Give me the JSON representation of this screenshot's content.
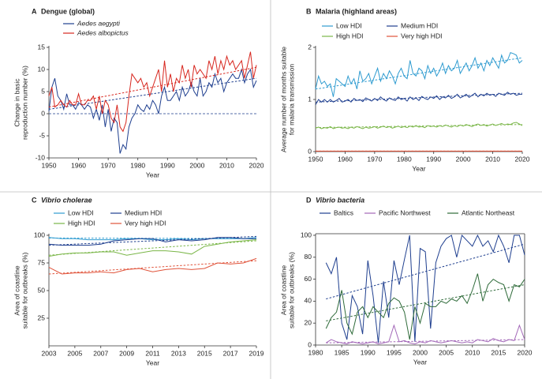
{
  "chart_data": [
    {
      "type": "line",
      "panel": "A",
      "title": "Dengue (global)",
      "xlabel": "Year",
      "ylabel": [
        "Change in basic",
        "reproduction number (%)"
      ],
      "xlim": [
        1950,
        2020
      ],
      "xticks": [
        1950,
        1960,
        1970,
        1980,
        1990,
        2000,
        2010,
        2020
      ],
      "ylim": [
        -10,
        15
      ],
      "yticks": [
        -10,
        -5,
        0,
        5,
        10,
        15
      ],
      "reference_line": 0,
      "trend_x": [
        1950,
        2020
      ],
      "x": [
        1950,
        1951,
        1952,
        1953,
        1954,
        1955,
        1956,
        1957,
        1958,
        1959,
        1960,
        1961,
        1962,
        1963,
        1964,
        1965,
        1966,
        1967,
        1968,
        1969,
        1970,
        1971,
        1972,
        1973,
        1974,
        1975,
        1976,
        1977,
        1978,
        1979,
        1980,
        1981,
        1982,
        1983,
        1984,
        1985,
        1986,
        1987,
        1988,
        1989,
        1990,
        1991,
        1992,
        1993,
        1994,
        1995,
        1996,
        1997,
        1998,
        1999,
        2000,
        2001,
        2002,
        2003,
        2004,
        2005,
        2006,
        2007,
        2008,
        2009,
        2010,
        2011,
        2012,
        2013,
        2014,
        2015,
        2016,
        2017,
        2018,
        2019,
        2020
      ],
      "series": [
        {
          "name": "Aedes aegypti",
          "color": "#1f3f8f",
          "trend": [
            1,
            8
          ],
          "values": [
            0.5,
            6,
            8,
            4,
            3,
            1,
            4.5,
            2,
            2,
            1,
            2.5,
            2,
            1,
            2,
            1.5,
            -1,
            1,
            -1.5,
            2,
            -3,
            1,
            -4,
            -1,
            -2,
            -9,
            -7,
            -8,
            -3,
            -1,
            0,
            2,
            1,
            0.5,
            2,
            1,
            3,
            2,
            0,
            4,
            6,
            3,
            3,
            4,
            5,
            3,
            6,
            4,
            5,
            7,
            5,
            4,
            8,
            4,
            5,
            7,
            6,
            9,
            7,
            8,
            5,
            7,
            8,
            9,
            8,
            8,
            10,
            7,
            9,
            10,
            6,
            7.5
          ]
        },
        {
          "name": "Aedes albopictus",
          "color": "#d7261e",
          "trend": [
            1.5,
            10.5
          ],
          "values": [
            4,
            6,
            1.5,
            2,
            3,
            2,
            1.5,
            3,
            2,
            2,
            4.5,
            2,
            2,
            3,
            3,
            4,
            1,
            4,
            0,
            3,
            2,
            -1,
            -2,
            2,
            -3,
            -4,
            -2,
            4,
            9,
            8,
            7,
            8,
            6,
            7,
            4,
            6,
            8,
            10,
            5,
            12,
            6,
            9,
            5,
            8,
            7,
            11,
            8,
            10,
            6,
            11,
            9,
            10,
            9,
            8,
            12,
            10,
            13,
            9,
            12,
            10,
            13,
            11,
            12,
            10,
            11,
            12,
            8,
            11,
            14,
            8,
            11
          ]
        }
      ]
    },
    {
      "type": "line",
      "panel": "B",
      "title": "Malaria (highland areas)",
      "xlabel": "Year",
      "ylabel": [
        "Average number of months suitable",
        "for malaria transmission"
      ],
      "xlim": [
        1950,
        2020
      ],
      "xticks": [
        1950,
        1960,
        1970,
        1980,
        1990,
        2000,
        2010,
        2020
      ],
      "ylim": [
        0,
        2
      ],
      "yticks": [
        0,
        1,
        2
      ],
      "trend_x": [
        1950,
        2020
      ],
      "x": [
        1950,
        1951,
        1952,
        1953,
        1954,
        1955,
        1956,
        1957,
        1958,
        1959,
        1960,
        1961,
        1962,
        1963,
        1964,
        1965,
        1966,
        1967,
        1968,
        1969,
        1970,
        1971,
        1972,
        1973,
        1974,
        1975,
        1976,
        1977,
        1978,
        1979,
        1980,
        1981,
        1982,
        1983,
        1984,
        1985,
        1986,
        1987,
        1988,
        1989,
        1990,
        1991,
        1992,
        1993,
        1994,
        1995,
        1996,
        1997,
        1998,
        1999,
        2000,
        2001,
        2002,
        2003,
        2004,
        2005,
        2006,
        2007,
        2008,
        2009,
        2010,
        2011,
        2012,
        2013,
        2014,
        2015,
        2016,
        2017,
        2018,
        2019,
        2020
      ],
      "series": [
        {
          "name": "Low HDI",
          "color": "#2e9bd0",
          "trend": [
            1.2,
            1.8
          ],
          "values": [
            1.2,
            1.45,
            1.3,
            1.35,
            1.25,
            1.3,
            1.05,
            1.4,
            1.35,
            1.3,
            1.25,
            1.45,
            1.3,
            1.4,
            1.2,
            1.55,
            1.35,
            1.4,
            1.5,
            1.3,
            1.45,
            1.6,
            1.35,
            1.5,
            1.4,
            1.55,
            1.45,
            1.3,
            1.5,
            1.6,
            1.45,
            1.4,
            1.75,
            1.5,
            1.45,
            1.6,
            1.55,
            1.4,
            1.65,
            1.5,
            1.6,
            1.45,
            1.55,
            1.7,
            1.5,
            1.65,
            1.55,
            1.6,
            1.75,
            1.5,
            1.6,
            1.7,
            1.55,
            1.65,
            1.8,
            1.6,
            1.7,
            1.55,
            1.75,
            1.65,
            1.8,
            1.7,
            1.6,
            1.85,
            1.7,
            1.75,
            1.9,
            1.88,
            1.85,
            1.7,
            1.75
          ]
        },
        {
          "name": "Medium HDI",
          "color": "#1f3f8f",
          "trend": [
            0.95,
            1.12
          ],
          "values": [
            0.9,
            1.0,
            0.95,
            1.0,
            0.95,
            1.0,
            0.95,
            0.98,
            1.02,
            0.95,
            0.97,
            1.0,
            0.95,
            1.02,
            0.98,
            1.0,
            0.96,
            1.03,
            1.0,
            0.97,
            1.02,
            0.98,
            1.05,
            1.0,
            0.97,
            1.03,
            1.0,
            0.98,
            1.05,
            1.0,
            1.02,
            0.97,
            1.05,
            1.0,
            1.03,
            0.98,
            1.06,
            1.02,
            1.0,
            1.05,
            1.02,
            1.07,
            1.0,
            1.05,
            1.03,
            1.08,
            1.02,
            1.05,
            1.1,
            1.03,
            1.06,
            1.1,
            1.04,
            1.08,
            1.12,
            1.05,
            1.1,
            1.07,
            1.12,
            1.08,
            1.1,
            1.06,
            1.12,
            1.1,
            1.08,
            1.14,
            1.1,
            1.12,
            1.08,
            1.1,
            1.1
          ]
        },
        {
          "name": "High HDI",
          "color": "#7ab648",
          "trend": [
            0.46,
            0.52
          ],
          "values": [
            0.45,
            0.47,
            0.44,
            0.46,
            0.45,
            0.48,
            0.44,
            0.46,
            0.47,
            0.45,
            0.46,
            0.44,
            0.47,
            0.45,
            0.48,
            0.46,
            0.44,
            0.47,
            0.45,
            0.46,
            0.48,
            0.45,
            0.47,
            0.49,
            0.46,
            0.48,
            0.45,
            0.47,
            0.49,
            0.46,
            0.48,
            0.46,
            0.49,
            0.47,
            0.5,
            0.47,
            0.48,
            0.46,
            0.5,
            0.48,
            0.49,
            0.47,
            0.5,
            0.48,
            0.51,
            0.49,
            0.47,
            0.5,
            0.48,
            0.51,
            0.49,
            0.52,
            0.5,
            0.48,
            0.51,
            0.53,
            0.5,
            0.52,
            0.49,
            0.51,
            0.53,
            0.5,
            0.52,
            0.54,
            0.51,
            0.53,
            0.52,
            0.55,
            0.56,
            0.53,
            0.5
          ]
        },
        {
          "name": "Very high HDI",
          "color": "#e0533a",
          "trend": [
            0.01,
            0.01
          ],
          "values": [
            0.01,
            0.01,
            0.01,
            0.01,
            0.01,
            0.01,
            0.01,
            0.01,
            0.01,
            0.01,
            0.01,
            0.01,
            0.01,
            0.01,
            0.01,
            0.01,
            0.01,
            0.01,
            0.01,
            0.01,
            0.01,
            0.01,
            0.01,
            0.01,
            0.01,
            0.01,
            0.01,
            0.01,
            0.01,
            0.01,
            0.01,
            0.01,
            0.01,
            0.01,
            0.01,
            0.01,
            0.01,
            0.01,
            0.01,
            0.01,
            0.01,
            0.01,
            0.01,
            0.01,
            0.01,
            0.01,
            0.01,
            0.01,
            0.01,
            0.01,
            0.01,
            0.01,
            0.01,
            0.01,
            0.01,
            0.01,
            0.01,
            0.01,
            0.01,
            0.01,
            0.01,
            0.01,
            0.01,
            0.01,
            0.01,
            0.01,
            0.01,
            0.01,
            0.01,
            0.01,
            0.01
          ]
        }
      ]
    },
    {
      "type": "line",
      "panel": "C",
      "title": "Vibrio cholerae",
      "xlabel": "Year",
      "ylabel": [
        "Area of coastline",
        "suitable for outbreaks (%)"
      ],
      "xlim": [
        2003,
        2019
      ],
      "xticks": [
        2003,
        2005,
        2007,
        2009,
        2011,
        2013,
        2015,
        2017,
        2019
      ],
      "ylim": [
        0,
        100
      ],
      "yticks": [
        25,
        50,
        75,
        100
      ],
      "trend_x": [
        2003,
        2019
      ],
      "x": [
        2003,
        2004,
        2005,
        2006,
        2007,
        2008,
        2009,
        2010,
        2011,
        2012,
        2013,
        2014,
        2015,
        2016,
        2017,
        2018,
        2019
      ],
      "series": [
        {
          "name": "Low HDI",
          "color": "#2e9bd0",
          "trend": [
            97.5,
            97
          ],
          "values": [
            98,
            97,
            97,
            96,
            96,
            96,
            97,
            97,
            96,
            96,
            97,
            96,
            97,
            97,
            97,
            97,
            98
          ]
        },
        {
          "name": "Medium HDI",
          "color": "#1f3f8f",
          "trend": [
            91,
            99
          ],
          "values": [
            92,
            91,
            91,
            91,
            92,
            95,
            96,
            97,
            97,
            94,
            96,
            95,
            96,
            98,
            98,
            97,
            97
          ]
        },
        {
          "name": "High HDI",
          "color": "#7ab648",
          "trend": [
            82,
            95
          ],
          "values": [
            81,
            83,
            84,
            84,
            85,
            85,
            82,
            84,
            86,
            86,
            85,
            83,
            90,
            92,
            94,
            95,
            96
          ]
        },
        {
          "name": "Very high HDI",
          "color": "#e0533a",
          "trend": [
            65,
            77
          ],
          "values": [
            71,
            65,
            66,
            66,
            67,
            66,
            69,
            70,
            67,
            69,
            70,
            69,
            70,
            75,
            74,
            75,
            79
          ]
        }
      ]
    },
    {
      "type": "line",
      "panel": "D",
      "title": "Vibrio bacteria",
      "xlabel": "Year",
      "ylabel": [
        "Area of coastline",
        "suitable for outbreaks (%)"
      ],
      "xlim": [
        1980,
        2020
      ],
      "xticks": [
        1980,
        1985,
        1990,
        1995,
        2000,
        2005,
        2010,
        2015,
        2020
      ],
      "ylim": [
        0,
        100
      ],
      "yticks": [
        0,
        20,
        40,
        60,
        80,
        100
      ],
      "trend_x": [
        1982,
        2020
      ],
      "x": [
        1982,
        1983,
        1984,
        1985,
        1986,
        1987,
        1988,
        1989,
        1990,
        1991,
        1992,
        1993,
        1994,
        1995,
        1996,
        1997,
        1998,
        1999,
        2000,
        2001,
        2002,
        2003,
        2004,
        2005,
        2006,
        2007,
        2008,
        2009,
        2010,
        2011,
        2012,
        2013,
        2014,
        2015,
        2016,
        2017,
        2018,
        2019,
        2020
      ],
      "series": [
        {
          "name": "Baltics",
          "color": "#1f3f8f",
          "trend": [
            42,
            92
          ],
          "values": [
            75,
            65,
            80,
            20,
            5,
            45,
            35,
            10,
            77,
            45,
            2,
            58,
            25,
            77,
            55,
            78,
            100,
            3,
            88,
            85,
            15,
            75,
            90,
            97,
            100,
            80,
            100,
            95,
            90,
            100,
            90,
            95,
            85,
            100,
            90,
            75,
            100,
            100,
            82
          ]
        },
        {
          "name": "Pacific Northwest",
          "color": "#a368b8",
          "trend": [
            2,
            5
          ],
          "values": [
            2,
            5,
            3,
            2,
            1,
            3,
            2,
            1,
            2,
            3,
            1,
            2,
            3,
            18,
            3,
            4,
            2,
            1,
            3,
            2,
            4,
            3,
            2,
            3,
            4,
            3,
            2,
            3,
            2,
            5,
            4,
            3,
            6,
            4,
            3,
            5,
            4,
            18,
            5
          ]
        },
        {
          "name": "Atlantic Northeast",
          "color": "#2f6b3a",
          "trend": [
            22,
            55
          ],
          "values": [
            15,
            25,
            30,
            50,
            20,
            10,
            30,
            35,
            25,
            35,
            30,
            25,
            38,
            43,
            40,
            30,
            5,
            35,
            20,
            38,
            35,
            35,
            40,
            38,
            42,
            40,
            45,
            38,
            50,
            65,
            40,
            55,
            60,
            57,
            55,
            40,
            55,
            53,
            60
          ]
        }
      ]
    }
  ]
}
